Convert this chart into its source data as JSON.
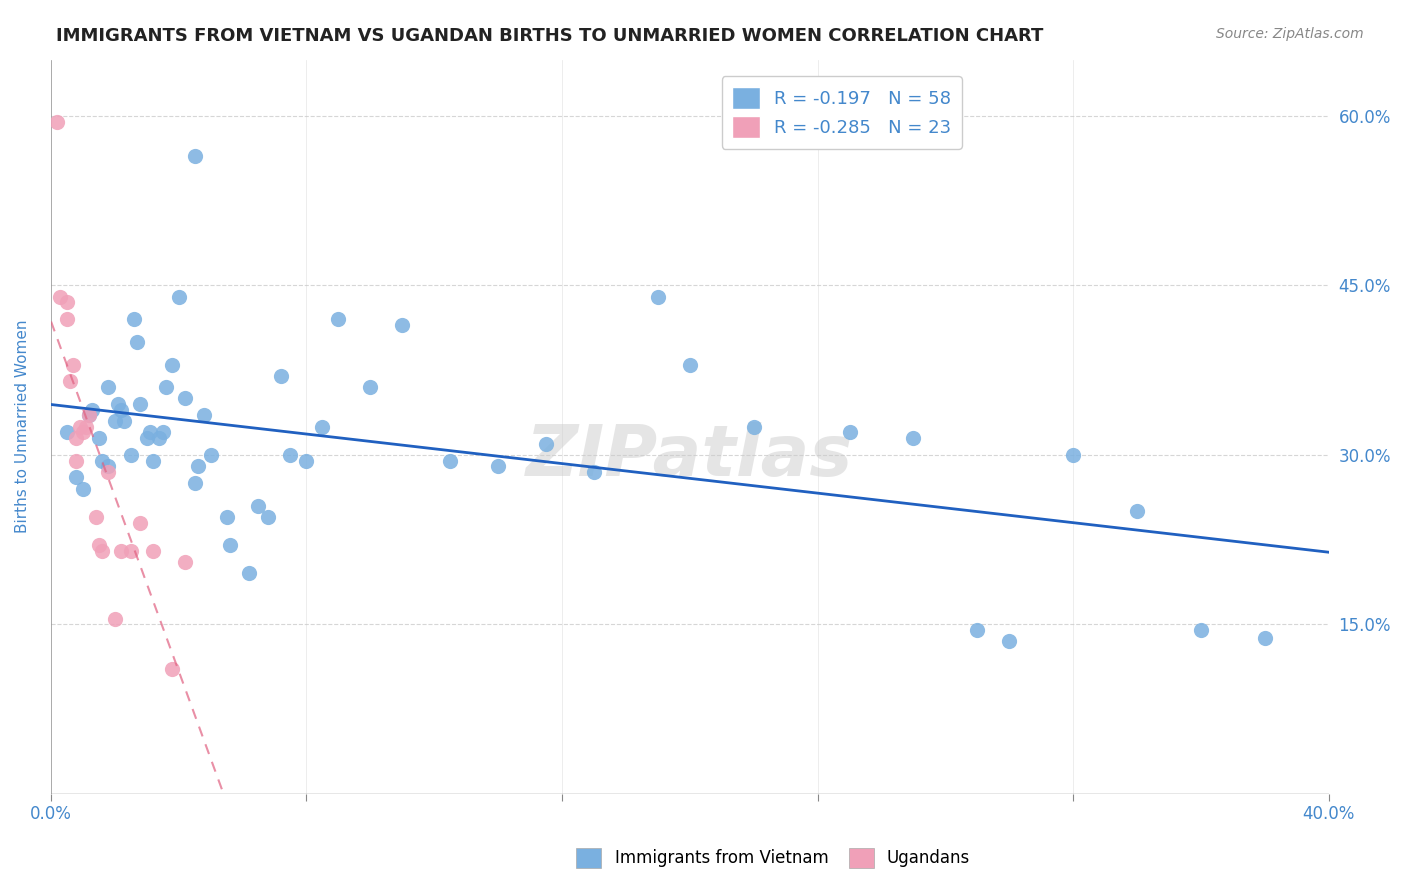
{
  "title": "IMMIGRANTS FROM VIETNAM VS UGANDAN BIRTHS TO UNMARRIED WOMEN CORRELATION CHART",
  "source": "Source: ZipAtlas.com",
  "xlabel_blue": "Immigrants from Vietnam",
  "xlabel_pink": "Ugandans",
  "ylabel": "Births to Unmarried Women",
  "legend_blue_R": "-0.197",
  "legend_blue_N": "58",
  "legend_pink_R": "-0.285",
  "legend_pink_N": "23",
  "xlim": [
    0.0,
    0.4
  ],
  "ylim": [
    0.0,
    0.65
  ],
  "yticks": [
    0.15,
    0.3,
    0.45,
    0.6
  ],
  "ytick_labels": [
    "15.0%",
    "30.0%",
    "45.0%",
    "60.0%"
  ],
  "xticks": [
    0.0,
    0.08,
    0.16,
    0.24,
    0.32,
    0.4
  ],
  "xtick_labels": [
    "0.0%",
    "",
    "",
    "",
    "",
    "40.0%"
  ],
  "blue_color": "#7ab0e0",
  "pink_color": "#f0a0b8",
  "trend_blue_color": "#2060c0",
  "trend_pink_color": "#e06080",
  "axis_label_color": "#4488cc",
  "background_color": "#ffffff",
  "watermark": "ZIPatlas",
  "blue_x": [
    0.005,
    0.008,
    0.01,
    0.012,
    0.013,
    0.015,
    0.016,
    0.018,
    0.018,
    0.02,
    0.021,
    0.022,
    0.023,
    0.025,
    0.026,
    0.027,
    0.028,
    0.03,
    0.031,
    0.032,
    0.034,
    0.035,
    0.036,
    0.038,
    0.04,
    0.042,
    0.045,
    0.046,
    0.048,
    0.05,
    0.055,
    0.056,
    0.062,
    0.065,
    0.068,
    0.072,
    0.075,
    0.08,
    0.085,
    0.09,
    0.1,
    0.11,
    0.125,
    0.14,
    0.155,
    0.17,
    0.19,
    0.22,
    0.25,
    0.27,
    0.29,
    0.3,
    0.32,
    0.34,
    0.36,
    0.38,
    0.045,
    0.2
  ],
  "blue_y": [
    0.32,
    0.28,
    0.27,
    0.335,
    0.34,
    0.315,
    0.295,
    0.29,
    0.36,
    0.33,
    0.345,
    0.34,
    0.33,
    0.3,
    0.42,
    0.4,
    0.345,
    0.315,
    0.32,
    0.295,
    0.315,
    0.32,
    0.36,
    0.38,
    0.44,
    0.35,
    0.275,
    0.29,
    0.335,
    0.3,
    0.245,
    0.22,
    0.195,
    0.255,
    0.245,
    0.37,
    0.3,
    0.295,
    0.325,
    0.42,
    0.36,
    0.415,
    0.295,
    0.29,
    0.31,
    0.285,
    0.44,
    0.325,
    0.32,
    0.315,
    0.145,
    0.135,
    0.3,
    0.25,
    0.145,
    0.138,
    0.565,
    0.38
  ],
  "pink_x": [
    0.002,
    0.003,
    0.005,
    0.005,
    0.006,
    0.007,
    0.008,
    0.008,
    0.009,
    0.01,
    0.011,
    0.012,
    0.014,
    0.015,
    0.016,
    0.018,
    0.02,
    0.022,
    0.025,
    0.028,
    0.032,
    0.038,
    0.042
  ],
  "pink_y": [
    0.595,
    0.44,
    0.435,
    0.42,
    0.365,
    0.38,
    0.315,
    0.295,
    0.325,
    0.32,
    0.325,
    0.335,
    0.245,
    0.22,
    0.215,
    0.285,
    0.155,
    0.215,
    0.215,
    0.24,
    0.215,
    0.11,
    0.205
  ]
}
